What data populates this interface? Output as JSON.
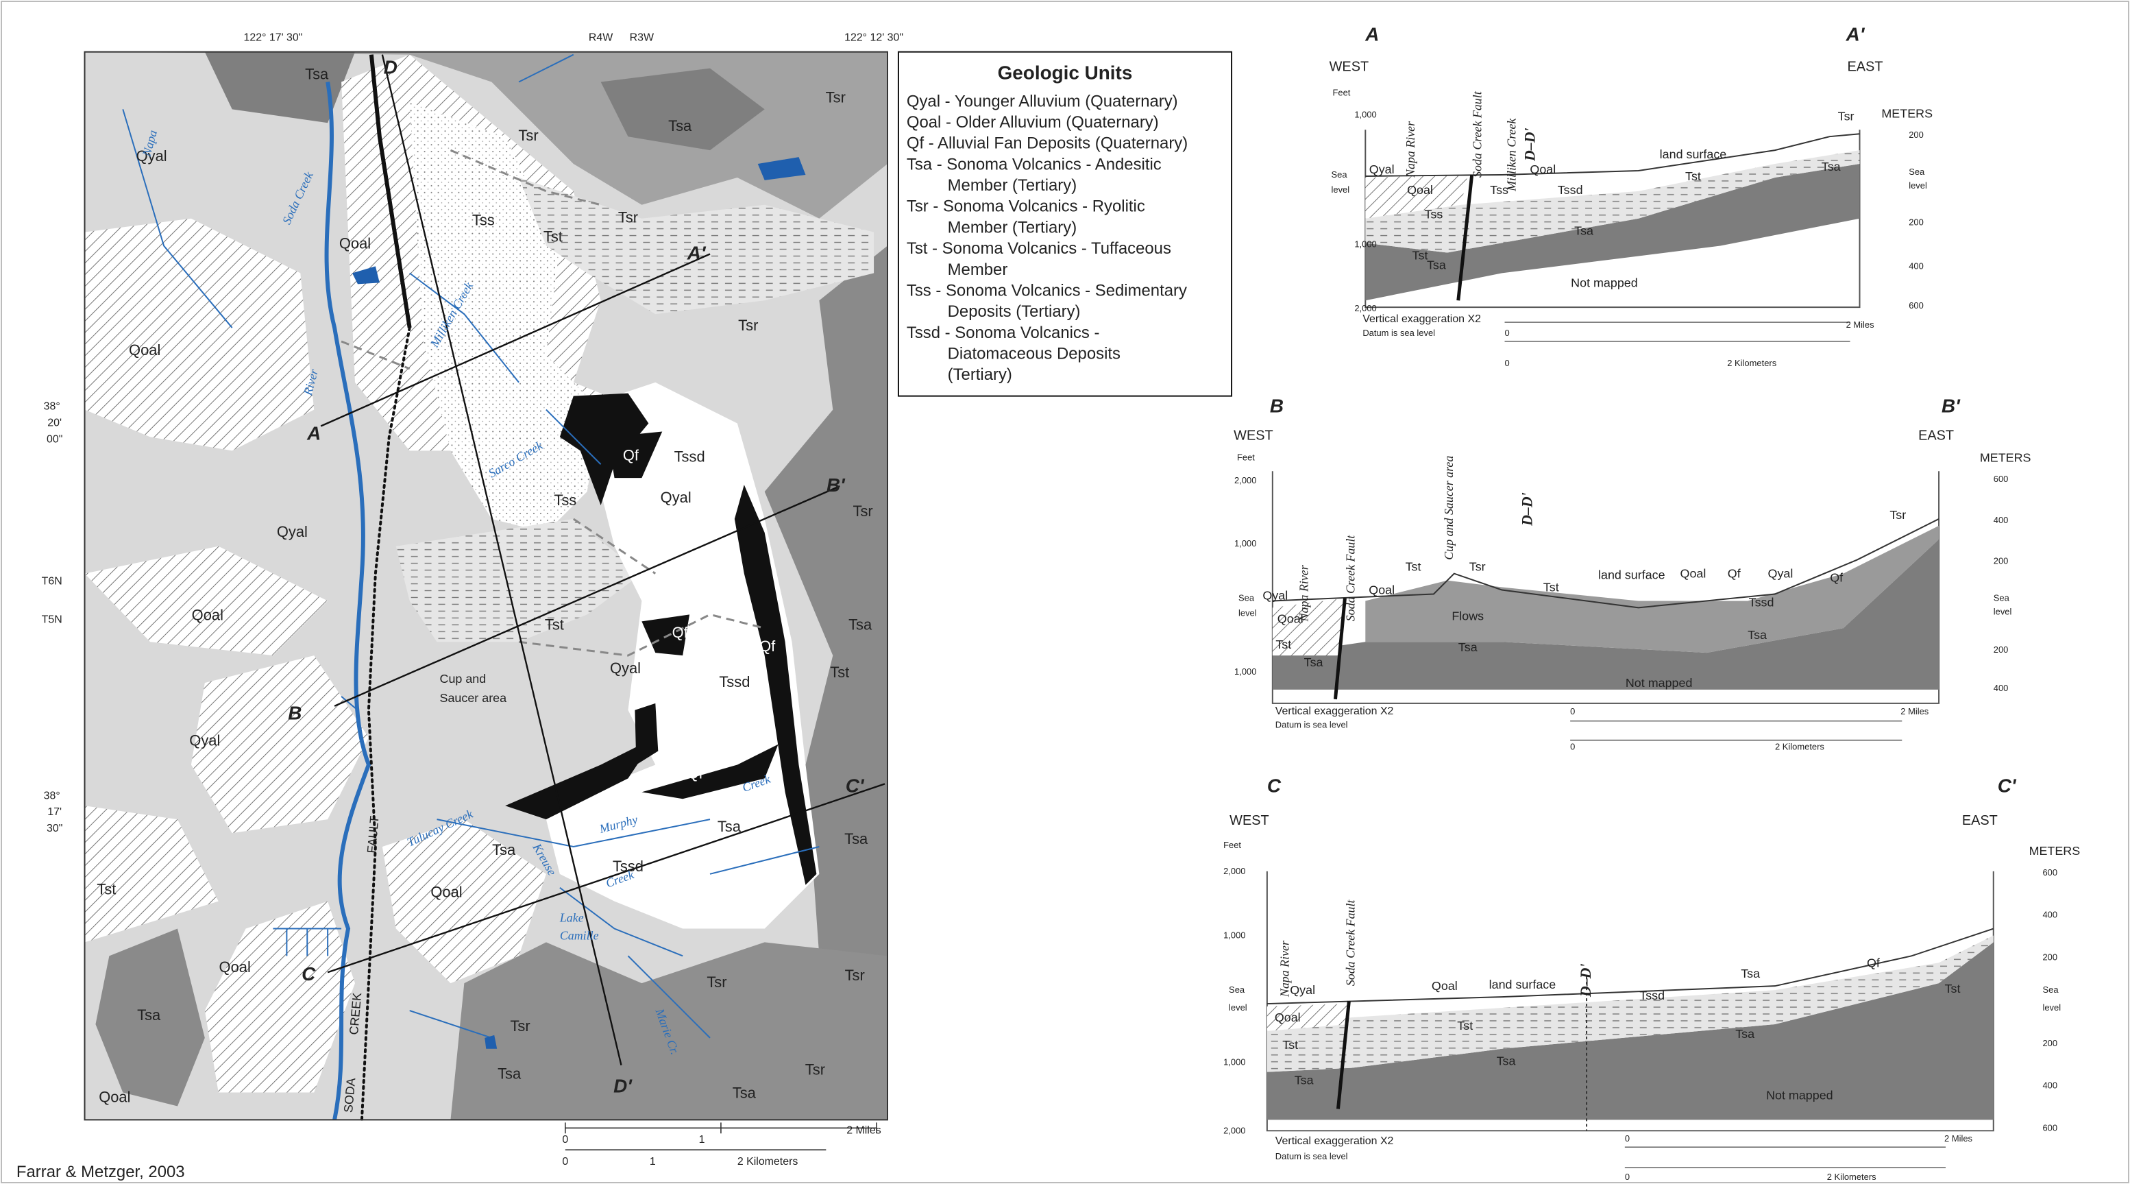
{
  "credit": "Farrar & Metzger, 2003",
  "legend": {
    "title": "Geologic Units",
    "items": [
      [
        "Qyal - Younger Alluvium (Quaternary)"
      ],
      [
        "Qoal - Older Alluvium (Quaternary)"
      ],
      [
        "Qf - Alluvial Fan Deposits (Quaternary)"
      ],
      [
        "Tsa - Sonoma Volcanics - Andesitic",
        "Member (Tertiary)"
      ],
      [
        "Tsr - Sonoma Volcanics - Ryolitic",
        "Member (Tertiary)"
      ],
      [
        "Tst - Sonoma Volcanics - Tuffaceous",
        "Member"
      ],
      [
        "Tss - Sonoma Volcanics - Sedimentary",
        "Deposits (Tertiary)"
      ],
      [
        "Tssd - Sonoma Volcanics -",
        "Diatomaceous Deposits",
        "(Tertiary)"
      ]
    ]
  },
  "map": {
    "coords": [
      "122° 17' 30\"",
      "R4W",
      "R3W",
      "122° 12' 30\"",
      "38°",
      "20'",
      "00\"",
      "T6N",
      "T5N",
      "38°",
      "17'",
      "30\""
    ],
    "units": [
      "Tsa",
      "Tsr",
      "Tsa",
      "Tsr",
      "Qyal",
      "Tss",
      "Tsr",
      "Tst",
      "Qoal",
      "Tsr",
      "Qoal",
      "Qf",
      "Tssd",
      "Tss",
      "Qyal",
      "Tsr",
      "Qyal",
      "Tst",
      "Qoal",
      "Qf",
      "Qf",
      "Tsa",
      "Qyal",
      "Tssd",
      "Tst",
      "Qyal",
      "Qf",
      "Tsa",
      "Tsa",
      "Tsa",
      "Tssd",
      "Tst",
      "Qoal",
      "Qoal",
      "Tsr",
      "Tsr",
      "Tsa",
      "Tsr",
      "Tsa",
      "Tsr",
      "Qoal",
      "Tsa"
    ],
    "features": [
      "Napa",
      "River",
      "Soda Creek",
      "Milliken Creek",
      "Sarco Creek",
      "Cup and",
      "Saucer area",
      "Tulucay Creek",
      "Kreuse",
      "Creek",
      "Murphy",
      "Creek",
      "Lake",
      "Camille",
      "Marie Cr.",
      "FAULT",
      "CREEK",
      "SODA"
    ],
    "section_ends": [
      "A",
      "A'",
      "B",
      "B'",
      "C",
      "C'",
      "D",
      "D'"
    ],
    "scale": [
      "0",
      "1",
      "2 Miles",
      "0",
      "1",
      "2  Kilometers"
    ]
  },
  "sections": [
    {
      "ends": [
        "A",
        "A'"
      ],
      "sides": [
        "WEST",
        "EAST"
      ],
      "feet": [
        "Feet",
        "1,000",
        "Sea",
        "level",
        "1,000",
        "2,000"
      ],
      "meters": [
        "METERS",
        "200",
        "Sea",
        "level",
        "200",
        "400",
        "600"
      ],
      "names": [
        "Napa River",
        "Soda Creek Fault",
        "Milliken Creek",
        "D–D'"
      ],
      "units": [
        "Qyal",
        "Qoal",
        "Tss",
        "Tst",
        "Qoal",
        "land surface",
        "Tsa",
        "Tsr",
        "Tss",
        "Tssd",
        "Tst",
        "Tsa",
        "Tsa",
        "Not mapped"
      ],
      "notes": [
        "Vertical exaggeration X2",
        "Datum is sea level",
        "0",
        "2 Miles",
        "0",
        "2 Kilometers"
      ]
    },
    {
      "ends": [
        "B",
        "B'"
      ],
      "sides": [
        "WEST",
        "EAST"
      ],
      "feet": [
        "Feet",
        "2,000",
        "1,000",
        "Sea",
        "level",
        "1,000"
      ],
      "meters": [
        "METERS",
        "600",
        "400",
        "200",
        "Sea",
        "level",
        "200",
        "400"
      ],
      "names": [
        "Napa River",
        "Soda Creek Fault",
        "Cup and Saucer area",
        "D–D'"
      ],
      "units": [
        "Qyal",
        "Qoal",
        "Tst",
        "Tsa",
        "Qoal",
        "Tst",
        "Tsr",
        "Flows",
        "Tst",
        "land surface",
        "Qoal",
        "Qf",
        "Qyal",
        "Qf",
        "Tssd",
        "Tsa",
        "Tsa",
        "Tsr",
        "Not mapped"
      ],
      "notes": [
        "Vertical exaggeration X2",
        "Datum is sea level",
        "0",
        "2 Miles",
        "0",
        "2 Kilometers"
      ]
    },
    {
      "ends": [
        "C",
        "C'"
      ],
      "sides": [
        "WEST",
        "EAST"
      ],
      "feet": [
        "Feet",
        "2,000",
        "1,000",
        "Sea",
        "level",
        "1,000",
        "2,000"
      ],
      "meters": [
        "METERS",
        "600",
        "400",
        "200",
        "Sea",
        "level",
        "200",
        "400",
        "600"
      ],
      "names": [
        "Napa River",
        "Soda Creek Fault",
        "D–D'"
      ],
      "units": [
        "Qyal",
        "Qoal",
        "Tst",
        "Tsa",
        "Qoal",
        "land surface",
        "Tssd",
        "Tst",
        "Tsa",
        "Tsa",
        "Tsa",
        "Qf",
        "Tst",
        "Not mapped"
      ],
      "notes": [
        "Vertical exaggeration X2",
        "Datum is sea level",
        "0",
        "2 Miles",
        "0",
        "2 Kilometers"
      ]
    }
  ]
}
